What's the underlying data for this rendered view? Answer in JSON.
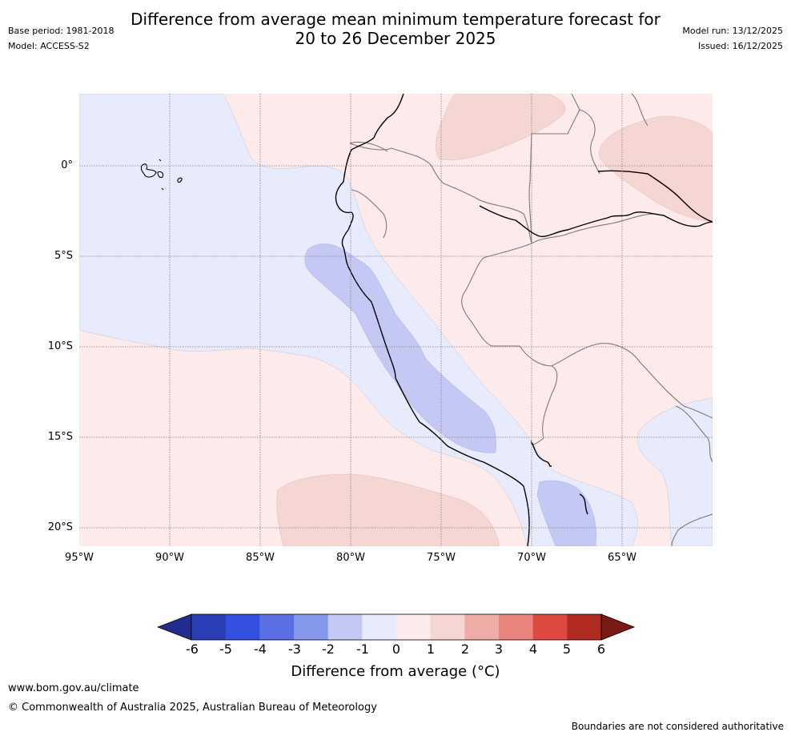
{
  "header": {
    "title_line1": "Difference from average mean minimum temperature forecast for",
    "title_line2": "20 to 26 December 2025",
    "base_period": "Base period: 1981-2018",
    "model": "Model: ACCESS-S2",
    "model_run": "Model run: 13/12/2025",
    "issued": "Issued: 16/12/2025"
  },
  "map": {
    "lat_labels": [
      "0°",
      "5°S",
      "10°S",
      "15°S",
      "20°S"
    ],
    "lon_labels": [
      "95°W",
      "90°W",
      "85°W",
      "80°W",
      "75°W",
      "70°W",
      "65°W"
    ]
  },
  "colorbar": {
    "ticks": [
      "-6",
      "-5",
      "-4",
      "-3",
      "-2",
      "-1",
      "0",
      "1",
      "2",
      "3",
      "4",
      "5",
      "6"
    ],
    "label": "Difference from average (°C)",
    "colors": [
      "#222c8f",
      "#2a3fb5",
      "#3350e0",
      "#5a6fe3",
      "#8597e9",
      "#c3c9f4",
      "#e8ebfb",
      "#fcebea",
      "#f5d6d3",
      "#efaca7",
      "#e8847c",
      "#de4a3f",
      "#b02b22",
      "#7a1a14"
    ]
  },
  "footer": {
    "url": "www.bom.gov.au/climate",
    "copyright": "© Commonwealth of Australia 2025, Australian Bureau of Meteorology",
    "disclaimer": "Boundaries are not considered authoritative"
  }
}
